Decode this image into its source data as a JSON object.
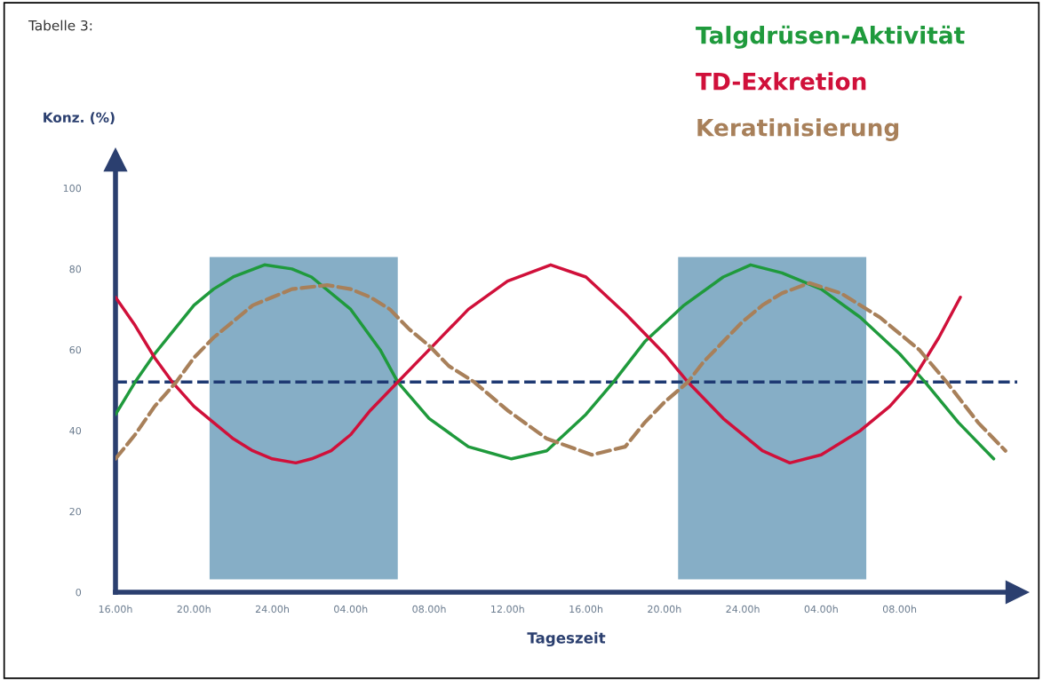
{
  "chart_data": {
    "type": "line",
    "xlabel": "Tageszeit",
    "ylabel": "Konz. (%)",
    "annotations": [
      "Tabelle 3:"
    ],
    "xlim": [
      "2000-01-01T16:00",
      "2000-01-03T14:00"
    ],
    "ylim": [
      0,
      107
    ],
    "xticks": [
      {
        "value": "2000-01-01T16:00",
        "label": "16.00h"
      },
      {
        "value": "2000-01-01T20:00",
        "label": "20.00h"
      },
      {
        "value": "2000-01-02T00:00",
        "label": "24.00h"
      },
      {
        "value": "2000-01-02T04:00",
        "label": "04.00h"
      },
      {
        "value": "2000-01-02T08:00",
        "label": "08.00h"
      },
      {
        "value": "2000-01-02T12:00",
        "label": "12.00h"
      },
      {
        "value": "2000-01-02T16:00",
        "label": "16.00h"
      },
      {
        "value": "2000-01-02T20:00",
        "label": "20.00h"
      },
      {
        "value": "2000-01-03T00:00",
        "label": "24.00h"
      },
      {
        "value": "2000-01-03T04:00",
        "label": "04.00h"
      },
      {
        "value": "2000-01-03T08:00",
        "label": "08.00h"
      }
    ],
    "yticks": [
      0,
      20,
      40,
      60,
      80,
      100
    ],
    "grid": false,
    "legend": "top right",
    "ref_lines": [
      {
        "axis": "y",
        "value": 52,
        "color": "#1f3a73",
        "line_style": "dashed"
      }
    ],
    "bands": [
      {
        "axis": "x",
        "from": "2000-01-01T20:48",
        "to": "2000-01-02T06:24",
        "color": "#86aec6"
      },
      {
        "axis": "x",
        "from": "2000-01-02T20:42",
        "to": "2000-01-03T06:18",
        "color": "#86aec6"
      }
    ],
    "series": [
      {
        "name": "Talgdrüsen-Aktivität",
        "color": "#1f9a3c",
        "line_style": "solid",
        "x": [
          "2000-01-01T16:00",
          "2000-01-01T17:00",
          "2000-01-01T18:00",
          "2000-01-01T19:00",
          "2000-01-01T20:00",
          "2000-01-01T21:00",
          "2000-01-01T22:00",
          "2000-01-01T23:36",
          "2000-01-02T01:00",
          "2000-01-02T02:00",
          "2000-01-02T04:00",
          "2000-01-02T05:30",
          "2000-01-02T06:24",
          "2000-01-02T08:00",
          "2000-01-02T10:00",
          "2000-01-02T12:12",
          "2000-01-02T14:00",
          "2000-01-02T16:00",
          "2000-01-02T17:24",
          "2000-01-02T19:00",
          "2000-01-02T21:00",
          "2000-01-02T23:00",
          "2000-01-03T00:24",
          "2000-01-03T02:00",
          "2000-01-03T04:00",
          "2000-01-03T06:00",
          "2000-01-03T08:00",
          "2000-01-03T09:18",
          "2000-01-03T11:00",
          "2000-01-03T12:48"
        ],
        "values": [
          44,
          52,
          59,
          65,
          71,
          75,
          78,
          81,
          80,
          78,
          70,
          60,
          52,
          43,
          36,
          33,
          35,
          44,
          52,
          62,
          71,
          78,
          81,
          79,
          75,
          68,
          59,
          52,
          42,
          33
        ]
      },
      {
        "name": "TD-Exkretion",
        "color": "#d0103a",
        "line_style": "solid",
        "x": [
          "2000-01-01T16:00",
          "2000-01-01T17:00",
          "2000-01-01T18:00",
          "2000-01-01T18:54",
          "2000-01-01T20:00",
          "2000-01-01T21:00",
          "2000-01-01T22:00",
          "2000-01-01T23:00",
          "2000-01-02T00:00",
          "2000-01-02T01:12",
          "2000-01-02T02:00",
          "2000-01-02T03:00",
          "2000-01-02T04:00",
          "2000-01-02T05:00",
          "2000-01-02T06:24",
          "2000-01-02T08:00",
          "2000-01-02T10:00",
          "2000-01-02T12:00",
          "2000-01-02T14:12",
          "2000-01-02T16:00",
          "2000-01-02T18:00",
          "2000-01-02T20:00",
          "2000-01-02T21:12",
          "2000-01-02T23:00",
          "2000-01-03T01:00",
          "2000-01-03T02:24",
          "2000-01-03T04:00",
          "2000-01-03T06:00",
          "2000-01-03T07:30",
          "2000-01-03T08:36",
          "2000-01-03T10:00",
          "2000-01-03T11:06"
        ],
        "values": [
          73,
          66,
          58,
          52,
          46,
          42,
          38,
          35,
          33,
          32,
          33,
          35,
          39,
          45,
          52,
          60,
          70,
          77,
          81,
          78,
          69,
          59,
          52,
          43,
          35,
          32,
          34,
          40,
          46,
          52,
          63,
          73
        ]
      },
      {
        "name": "Keratinisierung",
        "color": "#a8805a",
        "line_style": "dashed",
        "x": [
          "2000-01-01T16:00",
          "2000-01-01T17:00",
          "2000-01-01T18:00",
          "2000-01-01T19:06",
          "2000-01-01T20:00",
          "2000-01-01T21:00",
          "2000-01-01T22:00",
          "2000-01-01T23:00",
          "2000-01-02T00:00",
          "2000-01-02T01:00",
          "2000-01-02T02:48",
          "2000-01-02T04:00",
          "2000-01-02T05:00",
          "2000-01-02T06:00",
          "2000-01-02T07:00",
          "2000-01-02T08:00",
          "2000-01-02T09:00",
          "2000-01-02T10:18",
          "2000-01-02T12:00",
          "2000-01-02T14:00",
          "2000-01-02T16:18",
          "2000-01-02T18:00",
          "2000-01-02T19:00",
          "2000-01-02T20:00",
          "2000-01-02T21:12",
          "2000-01-02T22:00",
          "2000-01-02T23:00",
          "2000-01-03T00:00",
          "2000-01-03T01:00",
          "2000-01-03T02:00",
          "2000-01-03T03:24",
          "2000-01-03T05:00",
          "2000-01-03T07:00",
          "2000-01-03T09:00",
          "2000-01-03T10:24",
          "2000-01-03T12:00",
          "2000-01-03T13:24"
        ],
        "values": [
          33,
          39,
          46,
          52,
          58,
          63,
          67,
          71,
          73,
          75,
          76,
          75,
          73,
          70,
          65,
          61,
          56,
          52,
          45,
          38,
          34,
          36,
          42,
          47,
          52,
          57,
          62,
          67,
          71,
          74,
          76.5,
          74,
          68,
          60,
          52,
          42,
          35
        ]
      }
    ]
  }
}
